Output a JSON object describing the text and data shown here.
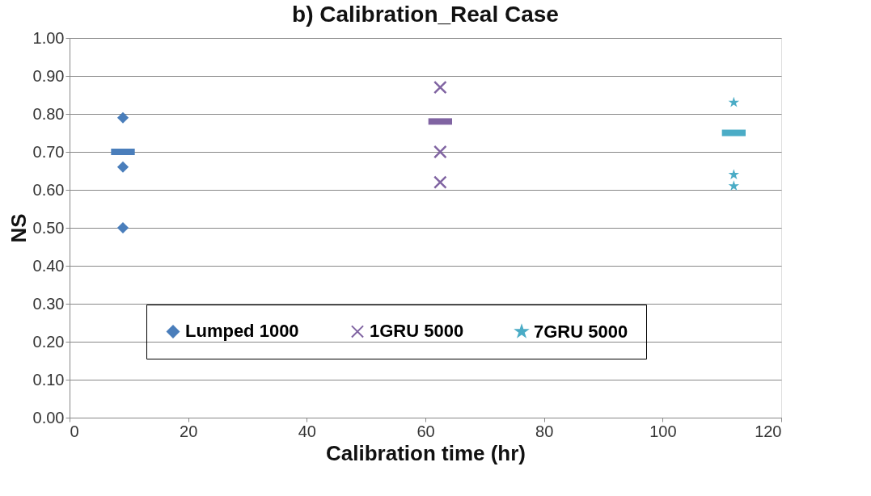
{
  "chart_data": {
    "type": "scatter",
    "title": "b) Calibration_Real Case",
    "xlabel": "Calibration time (hr)",
    "ylabel": "NS",
    "xlim": [
      0,
      120
    ],
    "xticks": [
      0,
      20,
      40,
      60,
      80,
      100,
      120
    ],
    "ylim": [
      0,
      1
    ],
    "yticks": [
      {
        "value": 0,
        "label": "0.00"
      },
      {
        "value": 0.1,
        "label": "0.10"
      },
      {
        "value": 0.2,
        "label": "0.20"
      },
      {
        "value": 0.3,
        "label": "0.30"
      },
      {
        "value": 0.4,
        "label": "0.40"
      },
      {
        "value": 0.5,
        "label": "0.50"
      },
      {
        "value": 0.6,
        "label": "0.60"
      },
      {
        "value": 0.7,
        "label": "0.70"
      },
      {
        "value": 0.8,
        "label": "0.80"
      },
      {
        "value": 0.9,
        "label": "0.90"
      },
      {
        "value": 1,
        "label": "1.00"
      }
    ],
    "grid": "y",
    "legend": "bottom",
    "series": [
      {
        "name": "Lumped 1000",
        "color": "#4a7ebb",
        "marker": "diamond",
        "x": [
          9,
          9,
          9
        ],
        "values": [
          0.79,
          0.66,
          0.5
        ]
      },
      {
        "name": "1GRU 5000",
        "color": "#8064a2",
        "marker": "cross",
        "x": [
          62.5,
          62.5,
          62.5
        ],
        "values": [
          0.87,
          0.7,
          0.62
        ]
      },
      {
        "name": "7GRU 5000",
        "color": "#4bacc6",
        "marker": "star",
        "x": [
          112,
          112,
          112
        ],
        "values": [
          0.83,
          0.64,
          0.61
        ]
      },
      {
        "type": "line",
        "color": "#4a7ebb",
        "x": [
          7,
          11
        ],
        "values": [
          0.7,
          0.7
        ]
      },
      {
        "type": "line",
        "color": "#8064a2",
        "x": [
          60.5,
          64.5
        ],
        "values": [
          0.78,
          0.78
        ]
      },
      {
        "type": "line",
        "color": "#4bacc6",
        "x": [
          110,
          114
        ],
        "values": [
          0.75,
          0.75
        ]
      }
    ]
  }
}
